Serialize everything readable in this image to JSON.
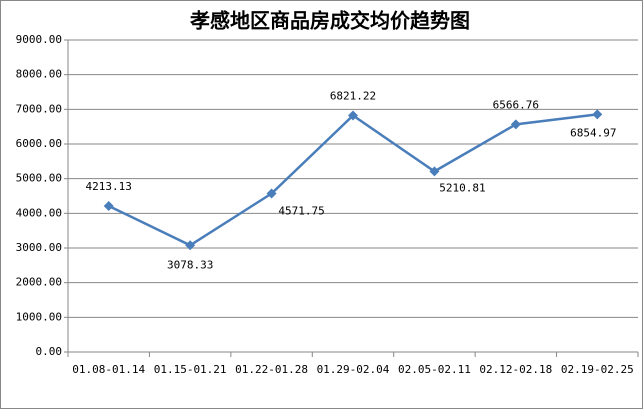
{
  "chart_data": {
    "type": "line",
    "title": "孝感地区商品房成交均价趋势图",
    "categories": [
      "01.08-01.14",
      "01.15-01.21",
      "01.22-01.28",
      "01.29-02.04",
      "02.05-02.11",
      "02.12-02.18",
      "02.19-02.25"
    ],
    "values": [
      4213.13,
      3078.33,
      4571.75,
      6821.22,
      5210.81,
      6566.76,
      6854.97
    ],
    "color": "#4a7ebb",
    "ylim": [
      0,
      9000
    ],
    "yticks": [
      {
        "value": 0,
        "label": "0.00"
      },
      {
        "value": 1000,
        "label": "1000.00"
      },
      {
        "value": 2000,
        "label": "2000.00"
      },
      {
        "value": 3000,
        "label": "3000.00"
      },
      {
        "value": 4000,
        "label": "4000.00"
      },
      {
        "value": 5000,
        "label": "5000.00"
      },
      {
        "value": 6000,
        "label": "6000.00"
      },
      {
        "value": 7000,
        "label": "7000.00"
      },
      {
        "value": 8000,
        "label": "8000.00"
      },
      {
        "value": 9000,
        "label": "9000.00"
      }
    ],
    "grid": true
  }
}
